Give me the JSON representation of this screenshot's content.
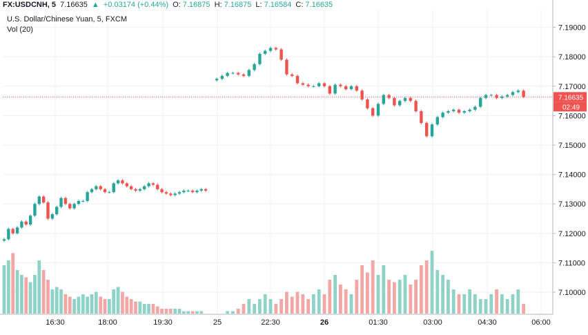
{
  "header": {
    "symbol": "FX:USDCNH, 5",
    "last": "7.16635",
    "change_arrow": "▲",
    "change": "+0.03174 (+0.44%)",
    "open_label": "O:",
    "open": "7.16875",
    "high_label": "H:",
    "high": "7.16875",
    "low_label": "L:",
    "low": "7.16584",
    "close_label": "C:",
    "close": "7.16635"
  },
  "legend": {
    "title": "U.S. Dollar/Chinese Yuan, 5, FXCM",
    "vol": "Vol (20)"
  },
  "price_tag": {
    "value": "7.16635",
    "countdown": "02:49"
  },
  "colors": {
    "up": "#26a69a",
    "down": "#ef5350",
    "up_vol": "#8fd3c8",
    "down_vol": "#f2a7a5",
    "grid": "#eef0f3",
    "tag": "#ef5350",
    "text": "#131722"
  },
  "chart_data": {
    "type": "candlestick",
    "title": "U.S. Dollar/Chinese Yuan, 5, FXCM",
    "ylim": [
      7.0925,
      7.196
    ],
    "y_ticks": [
      "7.19000",
      "7.18000",
      "7.17000",
      "7.16000",
      "7.15000",
      "7.14000",
      "7.13000",
      "7.12000",
      "7.11000",
      "7.10000"
    ],
    "x_ticks": [
      "16:30",
      "18:00",
      "19:30",
      "25",
      "22:30",
      "26",
      "01:30",
      "03:00",
      "04:30",
      "06:00"
    ],
    "last_price": 7.16635,
    "segments": [
      {
        "name": "session-1",
        "closes": [
          7.118,
          7.1215,
          7.12,
          7.122,
          7.124,
          7.123,
          7.126,
          7.13,
          7.1325,
          7.1305,
          7.125,
          7.1265,
          7.129,
          7.132,
          7.13,
          7.1285,
          7.13,
          7.131,
          7.131,
          7.134,
          7.135,
          7.136,
          7.135,
          7.134,
          7.134,
          7.137,
          7.138,
          7.137,
          7.136,
          7.135,
          7.1345,
          7.135,
          7.136,
          7.137,
          7.1365,
          7.135,
          7.134,
          7.1335,
          7.133,
          7.1335,
          7.134,
          7.1345,
          7.1345,
          7.134,
          7.1345,
          7.135,
          7.1345
        ],
        "volume": [
          20,
          22,
          25,
          18,
          16,
          15,
          13,
          16,
          22,
          18,
          14,
          10,
          11,
          10,
          8,
          7,
          6,
          7,
          8,
          7,
          8,
          9,
          7,
          6,
          6,
          10,
          11,
          9,
          7,
          6,
          5,
          5,
          4,
          4,
          4,
          3,
          2,
          2,
          2,
          2,
          2,
          1,
          1,
          1,
          1,
          1,
          0
        ]
      },
      {
        "name": "session-2",
        "closes": [
          7.1725,
          7.1735,
          7.1745,
          7.1745,
          7.174,
          7.1735,
          7.1755,
          7.1775,
          7.181,
          7.182,
          7.183,
          7.1825,
          7.179,
          7.174,
          7.1735,
          7.171,
          7.1705,
          7.17,
          7.17,
          7.171,
          7.17,
          7.1675,
          7.1705,
          7.17,
          7.169,
          7.17,
          7.1685,
          7.1655,
          7.1625,
          7.16,
          7.164,
          7.167,
          7.166,
          7.1635,
          7.165,
          7.166,
          7.165,
          7.1615,
          7.1575,
          7.153,
          7.157,
          7.1595,
          7.161,
          7.1615,
          7.162,
          7.161,
          7.1615,
          7.162,
          7.163,
          7.166,
          7.167,
          7.167,
          7.166,
          7.1665,
          7.167,
          7.168,
          7.1685,
          7.16635
        ],
        "volume": [
          0,
          0,
          1,
          1,
          2,
          4,
          6,
          4,
          6,
          8,
          6,
          4,
          6,
          9,
          7,
          9,
          8,
          6,
          8,
          10,
          8,
          14,
          16,
          12,
          10,
          8,
          14,
          20,
          17,
          22,
          16,
          20,
          14,
          13,
          14,
          16,
          12,
          14,
          20,
          22,
          26,
          18,
          16,
          14,
          10,
          8,
          8,
          10,
          8,
          6,
          6,
          8,
          10,
          8,
          6,
          8,
          10,
          4
        ]
      }
    ]
  }
}
